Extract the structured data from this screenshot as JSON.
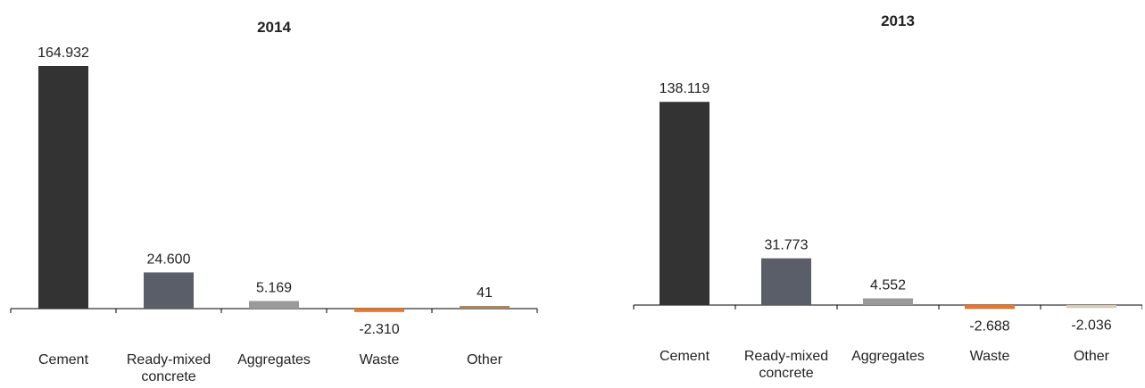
{
  "chart_data": [
    {
      "type": "bar",
      "title": "2014",
      "categories": [
        [
          "Cement"
        ],
        [
          "Ready-mixed",
          "concrete"
        ],
        [
          "Aggregates"
        ],
        [
          "Waste"
        ],
        [
          "Other"
        ]
      ],
      "values": [
        164932,
        24600,
        5169,
        -2310,
        41
      ],
      "value_labels": [
        "164.932",
        "24.600",
        "5.169",
        "-2.310",
        "41"
      ],
      "colors": [
        "#333333",
        "#5a5e68",
        "#9a9a9a",
        "#e8752a",
        "#a8855a"
      ],
      "ylim": [
        -5000,
        170000
      ]
    },
    {
      "type": "bar",
      "title": "2013",
      "categories": [
        [
          "Cement"
        ],
        [
          "Ready-mixed",
          "concrete"
        ],
        [
          "Aggregates"
        ],
        [
          "Waste"
        ],
        [
          "Other"
        ]
      ],
      "values": [
        138119,
        31773,
        4552,
        -2688,
        -2036
      ],
      "value_labels": [
        "138.119",
        "31.773",
        "4.552",
        "-2.688",
        "-2.036"
      ],
      "colors": [
        "#333333",
        "#5a5e68",
        "#9a9a9a",
        "#e8752a",
        "#d8cdb4"
      ],
      "ylim": [
        -5000,
        170000
      ]
    }
  ]
}
